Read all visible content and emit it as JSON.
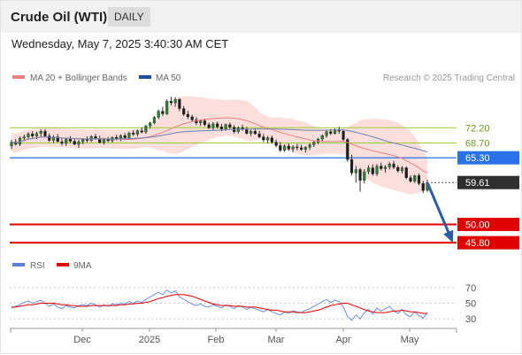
{
  "header": {
    "title": "Crude Oil (WTI)",
    "timeframe": "DAILY",
    "timestamp": "Wednesday, May 7, 2025 3:40:30 AM CET"
  },
  "chart_data": [
    {
      "type": "candlestick",
      "legend": [
        {
          "name": "MA 20 + Bollinger Bands",
          "color": "#f08080"
        },
        {
          "name": "MA 50",
          "color": "#1f4e99"
        }
      ],
      "legend_position": "top-left",
      "watermark": "Research © 2025 Trading Central",
      "x_tick_labels": [
        "Dec",
        "2025",
        "Feb",
        "Mar",
        "Apr",
        "May"
      ],
      "ylim": [
        44,
        81
      ],
      "levels": [
        {
          "label": "72.20",
          "value": 72.2,
          "kind": "resistance",
          "color": "#9acd32"
        },
        {
          "label": "68.70",
          "value": 68.7,
          "kind": "resistance",
          "color": "#9acd32"
        },
        {
          "label": "65.30",
          "value": 65.3,
          "kind": "pivot",
          "color": "#2a72e8"
        },
        {
          "label": "59.61",
          "value": 59.61,
          "kind": "last-price",
          "color": "#333333"
        },
        {
          "label": "50.00",
          "value": 50.0,
          "kind": "support",
          "color": "#e00000"
        },
        {
          "label": "45.80",
          "value": 45.8,
          "kind": "support",
          "color": "#e00000"
        }
      ],
      "forecast_arrow": {
        "from": 59.61,
        "to": 45.8,
        "color": "#2a5ca8"
      },
      "candles": [
        [
          68.0,
          69.4,
          67.3,
          68.9
        ],
        [
          68.9,
          69.6,
          68.1,
          68.4
        ],
        [
          68.4,
          70.2,
          68.0,
          69.8
        ],
        [
          69.8,
          70.6,
          69.1,
          70.1
        ],
        [
          70.1,
          71.2,
          69.5,
          70.8
        ],
        [
          70.8,
          71.4,
          69.9,
          70.3
        ],
        [
          70.3,
          71.3,
          69.6,
          70.9
        ],
        [
          70.9,
          71.8,
          70.2,
          71.4
        ],
        [
          71.4,
          71.9,
          70.0,
          70.3
        ],
        [
          70.3,
          70.9,
          68.9,
          69.3
        ],
        [
          69.3,
          70.5,
          68.7,
          70.1
        ],
        [
          70.1,
          70.8,
          68.9,
          69.0
        ],
        [
          69.0,
          69.8,
          68.1,
          68.6
        ],
        [
          68.6,
          69.9,
          68.0,
          69.6
        ],
        [
          69.6,
          70.3,
          68.7,
          69.1
        ],
        [
          69.1,
          69.7,
          68.2,
          68.4
        ],
        [
          68.4,
          69.4,
          67.6,
          69.0
        ],
        [
          69.0,
          69.8,
          68.4,
          69.5
        ],
        [
          69.5,
          70.2,
          68.8,
          69.3
        ],
        [
          69.3,
          70.5,
          68.9,
          70.2
        ],
        [
          70.2,
          70.8,
          69.4,
          69.7
        ],
        [
          69.7,
          70.4,
          68.6,
          68.8
        ],
        [
          68.8,
          69.9,
          68.3,
          69.6
        ],
        [
          69.6,
          70.1,
          68.9,
          69.2
        ],
        [
          69.2,
          70.2,
          68.8,
          70.0
        ],
        [
          70.0,
          70.6,
          69.3,
          69.7
        ],
        [
          69.7,
          70.7,
          69.1,
          70.4
        ],
        [
          70.4,
          71.0,
          69.6,
          69.9
        ],
        [
          69.9,
          71.3,
          69.5,
          71.0
        ],
        [
          71.0,
          71.7,
          70.3,
          70.7
        ],
        [
          70.7,
          71.8,
          70.2,
          71.5
        ],
        [
          71.5,
          72.3,
          70.9,
          71.2
        ],
        [
          71.2,
          72.9,
          70.8,
          72.6
        ],
        [
          72.6,
          73.6,
          72.0,
          73.3
        ],
        [
          73.3,
          74.9,
          73.0,
          74.6
        ],
        [
          74.6,
          76.4,
          74.2,
          76.0
        ],
        [
          76.0,
          77.0,
          74.9,
          75.4
        ],
        [
          75.4,
          78.7,
          75.1,
          78.3
        ],
        [
          78.3,
          79.3,
          77.3,
          77.9
        ],
        [
          77.9,
          79.2,
          77.0,
          78.7
        ],
        [
          78.7,
          79.0,
          76.0,
          76.6
        ],
        [
          76.6,
          77.2,
          74.9,
          75.3
        ],
        [
          75.3,
          76.1,
          74.2,
          74.7
        ],
        [
          74.7,
          75.2,
          73.6,
          74.0
        ],
        [
          74.0,
          74.6,
          72.8,
          73.3
        ],
        [
          73.3,
          74.1,
          72.6,
          73.8
        ],
        [
          73.8,
          74.3,
          72.5,
          72.9
        ],
        [
          72.9,
          73.4,
          71.9,
          72.2
        ],
        [
          72.2,
          73.5,
          71.6,
          73.1
        ],
        [
          73.1,
          73.6,
          72.0,
          72.4
        ],
        [
          72.4,
          73.1,
          71.4,
          71.9
        ],
        [
          71.9,
          73.2,
          71.5,
          72.9
        ],
        [
          72.9,
          73.4,
          71.9,
          72.3
        ],
        [
          72.3,
          72.8,
          70.9,
          71.3
        ],
        [
          71.3,
          72.5,
          70.9,
          72.2
        ],
        [
          72.2,
          72.9,
          71.5,
          71.8
        ],
        [
          71.8,
          72.4,
          70.6,
          70.9
        ],
        [
          70.9,
          71.7,
          70.3,
          71.4
        ],
        [
          71.4,
          72.1,
          70.6,
          70.8
        ],
        [
          70.8,
          71.5,
          69.8,
          70.1
        ],
        [
          70.1,
          70.8,
          68.9,
          69.4
        ],
        [
          69.4,
          70.3,
          68.6,
          69.9
        ],
        [
          69.9,
          70.4,
          68.5,
          68.9
        ],
        [
          68.9,
          69.5,
          67.7,
          68.1
        ],
        [
          68.1,
          68.9,
          66.6,
          67.0
        ],
        [
          67.0,
          68.4,
          66.7,
          68.0
        ],
        [
          68.0,
          68.6,
          66.9,
          67.3
        ],
        [
          67.3,
          68.2,
          66.6,
          67.8
        ],
        [
          67.8,
          68.5,
          67.0,
          67.6
        ],
        [
          67.6,
          68.3,
          66.9,
          67.2
        ],
        [
          67.2,
          68.0,
          66.5,
          67.7
        ],
        [
          67.7,
          68.6,
          67.1,
          68.3
        ],
        [
          68.3,
          69.1,
          67.8,
          68.9
        ],
        [
          68.9,
          69.9,
          68.4,
          69.6
        ],
        [
          69.6,
          70.7,
          69.1,
          70.4
        ],
        [
          70.4,
          71.6,
          69.9,
          71.3
        ],
        [
          71.3,
          71.9,
          70.5,
          70.9
        ],
        [
          70.9,
          72.0,
          70.6,
          71.6
        ],
        [
          71.6,
          72.4,
          70.8,
          71.4
        ],
        [
          71.4,
          71.9,
          69.0,
          69.5
        ],
        [
          69.5,
          69.8,
          64.4,
          64.9
        ],
        [
          64.9,
          66.0,
          61.3,
          61.8
        ],
        [
          61.8,
          63.4,
          59.6,
          62.6
        ],
        [
          62.6,
          63.0,
          57.5,
          60.1
        ],
        [
          60.1,
          62.7,
          59.4,
          62.1
        ],
        [
          62.1,
          63.6,
          61.5,
          63.0
        ],
        [
          63.0,
          63.8,
          61.2,
          61.6
        ],
        [
          61.6,
          63.9,
          61.1,
          63.4
        ],
        [
          63.4,
          64.2,
          62.4,
          62.8
        ],
        [
          62.8,
          63.6,
          61.9,
          63.2
        ],
        [
          63.2,
          64.3,
          62.6,
          63.9
        ],
        [
          63.9,
          64.6,
          62.7,
          63.1
        ],
        [
          63.1,
          63.6,
          61.9,
          62.3
        ],
        [
          62.3,
          63.4,
          61.7,
          63.0
        ],
        [
          63.0,
          63.3,
          60.4,
          60.7
        ],
        [
          60.7,
          61.3,
          59.6,
          59.9
        ],
        [
          59.9,
          61.4,
          59.5,
          61.2
        ],
        [
          61.2,
          61.7,
          59.0,
          59.4
        ],
        [
          59.4,
          60.0,
          57.2,
          57.8
        ],
        [
          57.8,
          60.3,
          57.5,
          59.61
        ]
      ]
    },
    {
      "type": "line",
      "legend": [
        {
          "name": "RSI",
          "color": "#5b7fd6"
        },
        {
          "name": "9MA",
          "color": "#e00000"
        }
      ],
      "legend_position": "top-left",
      "y_tick_labels": [
        "70",
        "50",
        "30"
      ],
      "ylim": [
        20,
        80
      ],
      "series": [
        {
          "name": "RSI",
          "values": [
            44,
            46,
            48,
            51,
            53,
            50,
            52,
            54,
            50,
            46,
            49,
            45,
            43,
            47,
            45,
            44,
            47,
            48,
            47,
            50,
            48,
            45,
            48,
            46,
            49,
            48,
            50,
            49,
            52,
            50,
            53,
            51,
            55,
            58,
            61,
            64,
            61,
            67,
            63,
            66,
            58,
            55,
            52,
            49,
            47,
            49,
            46,
            45,
            48,
            46,
            44,
            48,
            46,
            43,
            47,
            45,
            42,
            45,
            43,
            41,
            39,
            42,
            39,
            37,
            35,
            39,
            37,
            40,
            39,
            38,
            41,
            43,
            46,
            49,
            52,
            55,
            51,
            54,
            52,
            45,
            33,
            28,
            35,
            30,
            38,
            42,
            36,
            44,
            40,
            43,
            46,
            40,
            37,
            42,
            35,
            33,
            39,
            34,
            31,
            38
          ]
        },
        {
          "name": "9MA",
          "values": [
            45,
            45,
            46,
            47,
            48,
            48,
            49,
            50,
            50,
            50,
            50,
            49,
            48,
            48,
            47,
            47,
            46,
            46,
            46,
            47,
            47,
            47,
            47,
            47,
            47,
            47,
            48,
            48,
            49,
            49,
            50,
            50,
            51,
            52,
            54,
            56,
            57,
            59,
            60,
            61,
            61,
            61,
            60,
            59,
            57,
            55,
            53,
            51,
            49,
            48,
            47,
            47,
            47,
            46,
            46,
            46,
            45,
            45,
            45,
            44,
            43,
            42,
            41,
            41,
            40,
            39,
            39,
            39,
            38,
            38,
            38,
            39,
            40,
            41,
            43,
            45,
            47,
            48,
            49,
            50,
            50,
            48,
            46,
            44,
            42,
            40,
            39,
            38,
            38,
            38,
            39,
            40,
            40,
            41,
            40,
            39,
            39,
            38,
            37,
            37
          ]
        }
      ],
      "x_tick_labels": [
        "Dec",
        "2025",
        "Feb",
        "Mar",
        "Apr",
        "May"
      ]
    }
  ]
}
